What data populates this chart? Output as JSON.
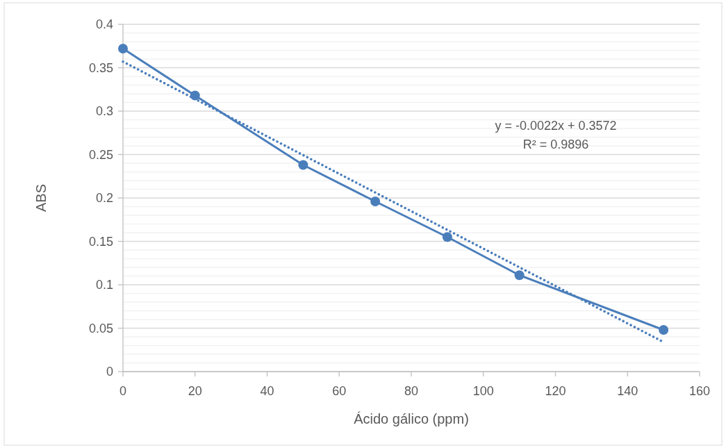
{
  "chart_data": {
    "type": "line",
    "xlabel": "Ácido gálico (ppm)",
    "ylabel": "ABS",
    "xlim": [
      0,
      160
    ],
    "xticks": [
      0,
      20,
      40,
      60,
      80,
      100,
      120,
      140,
      160
    ],
    "ylim": [
      0,
      0.4
    ],
    "yticks": [
      0,
      {
        "value": 0.01,
        "label": null
      },
      {
        "value": 0.02,
        "label": null
      },
      {
        "value": 0.03,
        "label": null
      },
      {
        "value": 0.04,
        "label": null
      },
      0.05,
      {
        "value": 0.06,
        "label": null
      },
      {
        "value": 0.07,
        "label": null
      },
      {
        "value": 0.08,
        "label": null
      },
      {
        "value": 0.09,
        "label": null
      },
      0.1,
      {
        "value": 0.11,
        "label": null
      },
      {
        "value": 0.12,
        "label": null
      },
      {
        "value": 0.13,
        "label": null
      },
      {
        "value": 0.14,
        "label": null
      },
      0.15,
      {
        "value": 0.16,
        "label": null
      },
      {
        "value": 0.17,
        "label": null
      },
      {
        "value": 0.18,
        "label": null
      },
      {
        "value": 0.19,
        "label": null
      },
      0.2,
      {
        "value": 0.21,
        "label": null
      },
      {
        "value": 0.22,
        "label": null
      },
      {
        "value": 0.23,
        "label": null
      },
      {
        "value": 0.24,
        "label": null
      },
      0.25,
      {
        "value": 0.26,
        "label": null
      },
      {
        "value": 0.27,
        "label": null
      },
      {
        "value": 0.28,
        "label": null
      },
      {
        "value": 0.29,
        "label": null
      },
      0.3,
      {
        "value": 0.31,
        "label": null
      },
      {
        "value": 0.32,
        "label": null
      },
      {
        "value": 0.33,
        "label": null
      },
      {
        "value": 0.34,
        "label": null
      },
      0.35,
      {
        "value": 0.36,
        "label": null
      },
      {
        "value": 0.37,
        "label": null
      },
      {
        "value": 0.38,
        "label": null
      },
      {
        "value": 0.39,
        "label": null
      },
      0.4
    ],
    "grid": "y",
    "series": [
      {
        "marker": "circle",
        "line_style": "solid",
        "color": "#4a7ebb",
        "x": [
          0,
          20,
          50,
          70,
          90,
          110,
          150
        ],
        "values": [
          0.372,
          0.318,
          0.238,
          0.196,
          0.155,
          0.111,
          0.048
        ]
      },
      {
        "marker": "none",
        "line_style": "dotted",
        "color": "#4a7ebb",
        "x": [
          0,
          150
        ],
        "values": [
          0.357,
          0.034
        ]
      }
    ],
    "annotations": [
      "y = -0.0022x + 0.3572",
      "R² = 0.9896"
    ]
  }
}
